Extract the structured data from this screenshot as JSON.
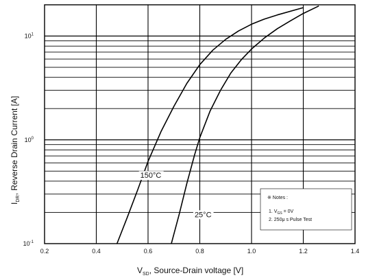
{
  "chart_data": {
    "type": "line",
    "xlabel_main": "V",
    "xlabel_sub": "SD",
    "xlabel_rest": ", Source-Drain voltage [V]",
    "ylabel_main": "I",
    "ylabel_sub": "DR",
    "ylabel_rest": ", Reverse Drain Current [A]",
    "xlim": [
      0.2,
      1.4
    ],
    "ylim": [
      0.1,
      20
    ],
    "yscale": "log",
    "grid": true,
    "x_ticks": [
      {
        "value": 0.2,
        "label": "0.2"
      },
      {
        "value": 0.4,
        "label": "0.4"
      },
      {
        "value": 0.6,
        "label": "0.6"
      },
      {
        "value": 0.8,
        "label": "0.8"
      },
      {
        "value": 1.0,
        "label": "1.0"
      },
      {
        "value": 1.2,
        "label": "1.2"
      },
      {
        "value": 1.4,
        "label": "1.4"
      }
    ],
    "y_ticks": [
      {
        "value": 10,
        "base": "10",
        "exp": "1"
      },
      {
        "value": 1,
        "base": "10",
        "exp": "0"
      },
      {
        "value": 0.1,
        "base": "10",
        "exp": "-1"
      }
    ],
    "series": [
      {
        "name": "150°C",
        "x": [
          0.48,
          0.52,
          0.56,
          0.6,
          0.65,
          0.7,
          0.75,
          0.8,
          0.85,
          0.9,
          0.95,
          1.0,
          1.05,
          1.1,
          1.2
        ],
        "y": [
          0.1,
          0.18,
          0.33,
          0.62,
          1.2,
          2.1,
          3.5,
          5.3,
          7.3,
          9.3,
          11.2,
          13.0,
          14.6,
          16.0,
          18.8
        ]
      },
      {
        "name": "25°C",
        "x": [
          0.69,
          0.72,
          0.75,
          0.78,
          0.8,
          0.84,
          0.88,
          0.92,
          0.96,
          1.0,
          1.05,
          1.1,
          1.15,
          1.2,
          1.26
        ],
        "y": [
          0.1,
          0.19,
          0.38,
          0.72,
          1.05,
          1.9,
          3.0,
          4.4,
          5.9,
          7.5,
          9.6,
          11.8,
          14.0,
          16.5,
          19.5
        ]
      }
    ],
    "curve_labels": [
      {
        "text": "150°C",
        "x": 0.57,
        "y": 0.43
      },
      {
        "text": "25°C",
        "x": 0.78,
        "y": 0.18
      }
    ],
    "notes": {
      "title": "※ Notes :",
      "line1_prefix": "1. V",
      "line1_sub": "GS",
      "line1_suffix": " = 0V",
      "line2": "2. 250μ s Pulse Test"
    }
  }
}
